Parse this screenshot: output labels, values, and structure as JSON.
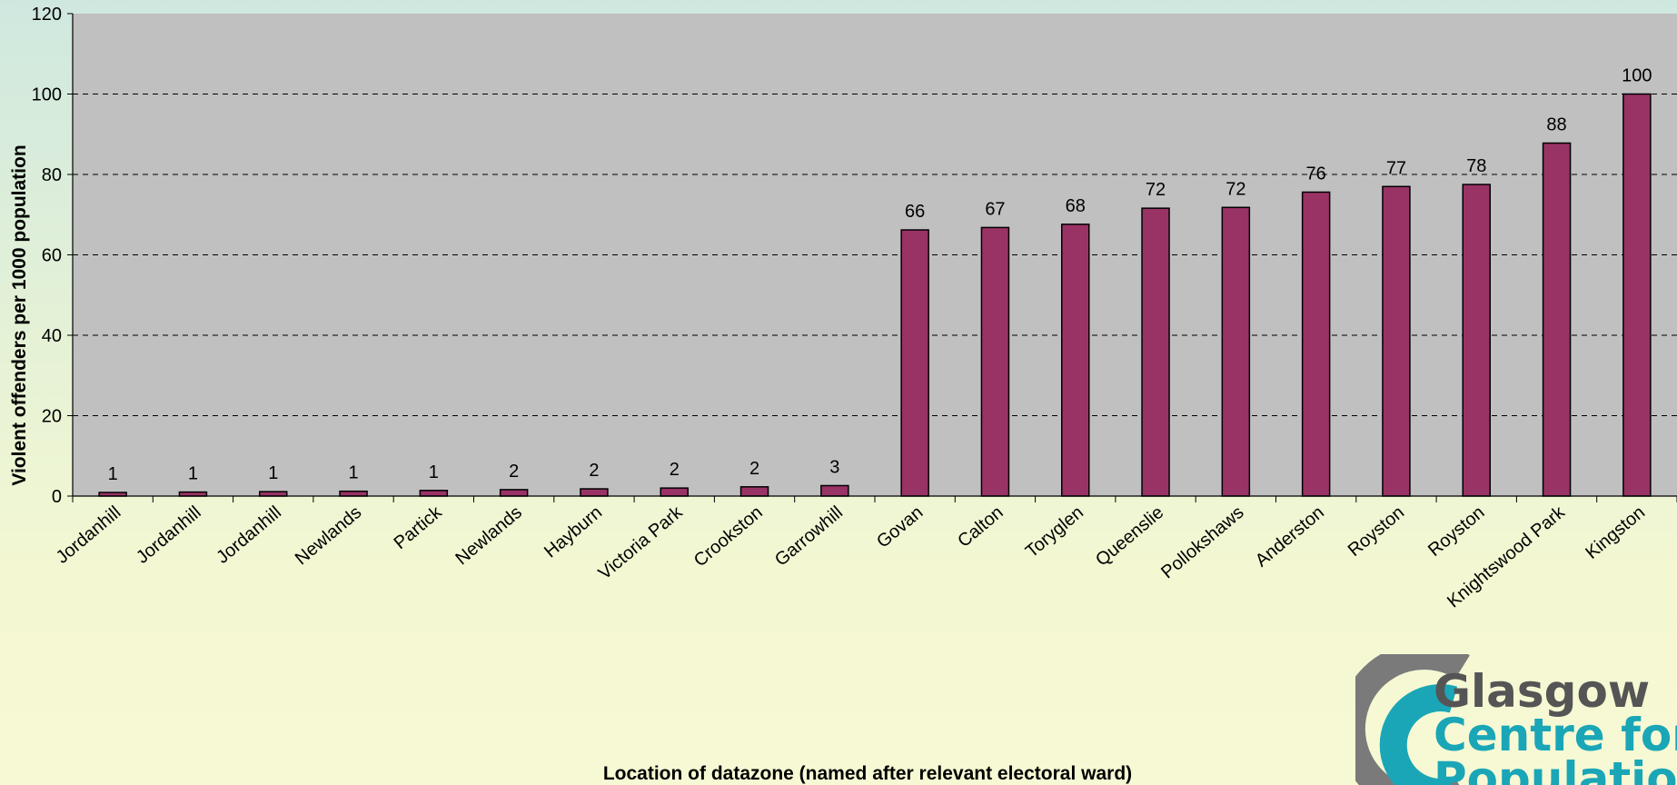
{
  "chart_data": {
    "type": "bar",
    "title": "",
    "xlabel": "Location of datazone (named after relevant electoral ward)",
    "ylabel": "Violent offenders per 1000 population",
    "ylim": [
      0,
      120
    ],
    "yticks": [
      0,
      20,
      40,
      60,
      80,
      100,
      120
    ],
    "grid": "horizontal dashed",
    "categories": [
      "Jordanhill",
      "Jordanhill",
      "Jordanhill",
      "Newlands",
      "Partick",
      "Newlands",
      "Hayburn",
      "Victoria Park",
      "Crookston",
      "Garrowhill",
      "Govan",
      "Calton",
      "Toryglen",
      "Queenslie",
      "Pollokshaws",
      "Anderston",
      "Royston",
      "Royston",
      "Knightswood Park",
      "Kingston"
    ],
    "values": [
      0.9,
      1.0,
      1.1,
      1.2,
      1.4,
      1.6,
      1.8,
      2.0,
      2.3,
      2.6,
      66.2,
      66.8,
      67.6,
      71.6,
      71.8,
      75.6,
      77.0,
      77.5,
      87.8,
      100.0
    ],
    "data_labels": [
      "1",
      "1",
      "1",
      "1",
      "1",
      "2",
      "2",
      "2",
      "2",
      "3",
      "66",
      "67",
      "68",
      "72",
      "72",
      "76",
      "77",
      "78",
      "88",
      "100"
    ],
    "colors": {
      "bar": "#993366",
      "plot_bg": "#c0c0c0",
      "grid": "#000000"
    }
  },
  "logo": {
    "lines": [
      "Glasgow",
      "Centre for",
      "Population"
    ],
    "colors": {
      "grey": "#7a7a7a",
      "teal": "#1aa6b7",
      "dark": "#555555"
    }
  }
}
